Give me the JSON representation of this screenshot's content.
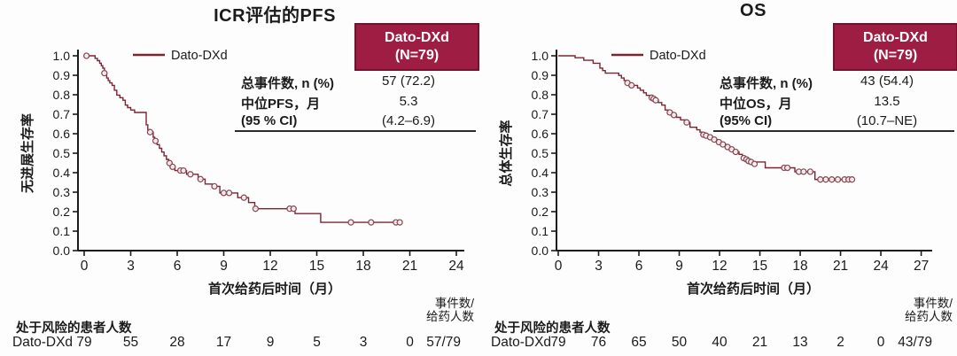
{
  "colors": {
    "curve": "#7d2433",
    "censor_stroke": "#8c4a56",
    "header_bg": "#9e1e43",
    "header_border": "#701331",
    "axis": "#1b1b1b",
    "text": "#1b1b1b"
  },
  "charts": [
    {
      "title": "ICR评估的PFS",
      "legend": "Dato-DXd",
      "ylabel": "无进展生存率",
      "xlabel": "首次给药后时间（月）",
      "header_line1": "Dato-DXd",
      "header_line2": "(N=79)",
      "stats": {
        "row1_label": "总事件数, n (%)",
        "row1_value": "57 (72.2)",
        "row2_label": "中位PFS，月",
        "row2_value": "5.3",
        "row3_label": "(95 % CI)",
        "row3_value": "(4.2–6.9)"
      },
      "risk_header": "处于风险的患者人数",
      "events_label_1": "事件数/",
      "events_label_2": "给药人数",
      "risk_group": "Dato-DXd",
      "risk_events": "57/79"
    },
    {
      "title": "OS",
      "legend": "Dato-DXd",
      "ylabel": "总体生存率",
      "xlabel": "首次给药后时间（月）",
      "header_line1": "Dato-DXd",
      "header_line2": "(N=79)",
      "stats": {
        "row1_label": "总事件数, n (%)",
        "row1_value": "43 (54.4)",
        "row2_label": "中位OS，月",
        "row2_value": "13.5",
        "row3_label": "(95% CI)",
        "row3_value": "(10.7–NE)"
      },
      "risk_header": "处于风险的患者人数",
      "events_label_1": "事件数/",
      "events_label_2": "给药人数",
      "risk_group": "Dato-DXd",
      "risk_events": "43/79"
    }
  ],
  "chart_data": [
    {
      "type": "line",
      "subtype": "kaplan-meier",
      "title": "ICR评估的PFS",
      "xlabel": "首次给药后时间（月）",
      "ylabel": "无进展生存率",
      "xlim": [
        0,
        24
      ],
      "ylim": [
        0.0,
        1.0
      ],
      "xticks": [
        0,
        3,
        6,
        9,
        12,
        15,
        18,
        21,
        24
      ],
      "yticks": [
        0.0,
        0.1,
        0.2,
        0.3,
        0.4,
        0.5,
        0.6,
        0.7,
        0.8,
        0.9,
        1.0
      ],
      "grid": false,
      "legend_position": "inside-top-left",
      "series": [
        {
          "name": "Dato-DXd",
          "n": 79,
          "events": "57/79",
          "median": 5.3,
          "ci95": "4.2–6.9",
          "steps": [
            [
              0,
              1.0
            ],
            [
              0.7,
              0.987
            ],
            [
              0.85,
              0.975
            ],
            [
              1.0,
              0.962
            ],
            [
              1.1,
              0.949
            ],
            [
              1.2,
              0.937
            ],
            [
              1.3,
              0.911
            ],
            [
              1.45,
              0.886
            ],
            [
              1.55,
              0.873
            ],
            [
              1.65,
              0.861
            ],
            [
              1.8,
              0.848
            ],
            [
              1.95,
              0.823
            ],
            [
              2.1,
              0.798
            ],
            [
              2.3,
              0.785
            ],
            [
              2.5,
              0.772
            ],
            [
              2.65,
              0.747
            ],
            [
              2.8,
              0.734
            ],
            [
              3.0,
              0.722
            ],
            [
              3.25,
              0.709
            ],
            [
              4.0,
              0.646
            ],
            [
              4.1,
              0.62
            ],
            [
              4.2,
              0.608
            ],
            [
              4.45,
              0.582
            ],
            [
              4.55,
              0.563
            ],
            [
              4.7,
              0.544
            ],
            [
              4.85,
              0.525
            ],
            [
              5.0,
              0.506
            ],
            [
              5.15,
              0.487
            ],
            [
              5.3,
              0.468
            ],
            [
              5.45,
              0.449
            ],
            [
              5.6,
              0.43
            ],
            [
              5.85,
              0.411
            ],
            [
              6.6,
              0.392
            ],
            [
              7.35,
              0.367
            ],
            [
              7.8,
              0.342
            ],
            [
              8.25,
              0.33
            ],
            [
              8.75,
              0.296
            ],
            [
              9.9,
              0.272
            ],
            [
              10.6,
              0.247
            ],
            [
              11.0,
              0.215
            ],
            [
              13.6,
              0.19
            ],
            [
              15.25,
              0.145
            ],
            [
              20.4,
              0.145
            ]
          ],
          "censors": [
            [
              0.15,
              1.0
            ],
            [
              1.3,
              0.911
            ],
            [
              4.25,
              0.608
            ],
            [
              4.6,
              0.563
            ],
            [
              5.5,
              0.449
            ],
            [
              5.7,
              0.43
            ],
            [
              6.2,
              0.411
            ],
            [
              6.4,
              0.411
            ],
            [
              6.85,
              0.392
            ],
            [
              7.5,
              0.367
            ],
            [
              8.4,
              0.33
            ],
            [
              9.0,
              0.296
            ],
            [
              9.35,
              0.296
            ],
            [
              10.3,
              0.272
            ],
            [
              11.05,
              0.215
            ],
            [
              13.25,
              0.215
            ],
            [
              13.5,
              0.215
            ],
            [
              17.2,
              0.145
            ],
            [
              18.5,
              0.145
            ],
            [
              20.1,
              0.145
            ],
            [
              20.35,
              0.145
            ]
          ]
        }
      ],
      "risk_table": {
        "label": "处于风险的患者人数",
        "group": "Dato-DXd",
        "times": [
          0,
          3,
          6,
          9,
          12,
          15,
          18,
          21
        ],
        "counts": [
          79,
          55,
          28,
          17,
          9,
          5,
          3,
          0
        ],
        "events_over_dosed": "57/79"
      }
    },
    {
      "type": "line",
      "subtype": "kaplan-meier",
      "title": "OS",
      "xlabel": "首次给药后时间（月）",
      "ylabel": "总体生存率",
      "xlim": [
        0,
        27
      ],
      "ylim": [
        0.0,
        1.0
      ],
      "xticks": [
        0,
        3,
        6,
        9,
        12,
        15,
        18,
        21,
        24,
        27
      ],
      "yticks": [
        0.0,
        0.1,
        0.2,
        0.3,
        0.4,
        0.5,
        0.6,
        0.7,
        0.8,
        0.9,
        1.0
      ],
      "grid": false,
      "legend_position": "inside-top-left",
      "series": [
        {
          "name": "Dato-DXd",
          "n": 79,
          "events": "43/79",
          "median": 13.5,
          "ci95": "10.7–NE",
          "steps": [
            [
              0,
              1.0
            ],
            [
              1.25,
              0.99
            ],
            [
              1.9,
              0.977
            ],
            [
              2.6,
              0.962
            ],
            [
              3.1,
              0.937
            ],
            [
              3.3,
              0.924
            ],
            [
              3.5,
              0.911
            ],
            [
              4.5,
              0.899
            ],
            [
              4.7,
              0.886
            ],
            [
              4.9,
              0.873
            ],
            [
              5.1,
              0.861
            ],
            [
              5.4,
              0.848
            ],
            [
              5.9,
              0.835
            ],
            [
              6.1,
              0.823
            ],
            [
              6.35,
              0.81
            ],
            [
              6.55,
              0.797
            ],
            [
              6.8,
              0.785
            ],
            [
              7.2,
              0.772
            ],
            [
              7.45,
              0.76
            ],
            [
              7.7,
              0.747
            ],
            [
              7.95,
              0.722
            ],
            [
              8.2,
              0.709
            ],
            [
              8.5,
              0.696
            ],
            [
              8.8,
              0.684
            ],
            [
              9.1,
              0.671
            ],
            [
              9.45,
              0.658
            ],
            [
              9.8,
              0.633
            ],
            [
              10.3,
              0.62
            ],
            [
              10.55,
              0.608
            ],
            [
              10.7,
              0.595
            ],
            [
              11.1,
              0.582
            ],
            [
              11.5,
              0.57
            ],
            [
              11.85,
              0.557
            ],
            [
              12.15,
              0.545
            ],
            [
              12.5,
              0.532
            ],
            [
              12.8,
              0.52
            ],
            [
              13.1,
              0.507
            ],
            [
              13.45,
              0.494
            ],
            [
              13.7,
              0.481
            ],
            [
              13.95,
              0.468
            ],
            [
              14.2,
              0.455
            ],
            [
              15.4,
              0.425
            ],
            [
              17.6,
              0.405
            ],
            [
              19.1,
              0.365
            ],
            [
              21.9,
              0.365
            ]
          ],
          "censors": [
            [
              5.15,
              0.861
            ],
            [
              5.45,
              0.848
            ],
            [
              6.95,
              0.785
            ],
            [
              7.1,
              0.779
            ],
            [
              7.25,
              0.772
            ],
            [
              8.3,
              0.709
            ],
            [
              8.6,
              0.696
            ],
            [
              9.55,
              0.658
            ],
            [
              10.8,
              0.595
            ],
            [
              11.0,
              0.59
            ],
            [
              11.3,
              0.582
            ],
            [
              11.6,
              0.57
            ],
            [
              11.95,
              0.557
            ],
            [
              12.25,
              0.545
            ],
            [
              12.6,
              0.532
            ],
            [
              12.9,
              0.52
            ],
            [
              13.2,
              0.507
            ],
            [
              13.8,
              0.475
            ],
            [
              14.0,
              0.468
            ],
            [
              14.15,
              0.46
            ],
            [
              14.35,
              0.455
            ],
            [
              14.6,
              0.445
            ],
            [
              16.8,
              0.425
            ],
            [
              17.05,
              0.425
            ],
            [
              17.9,
              0.405
            ],
            [
              18.25,
              0.405
            ],
            [
              18.75,
              0.405
            ],
            [
              19.5,
              0.365
            ],
            [
              19.9,
              0.365
            ],
            [
              20.35,
              0.365
            ],
            [
              20.8,
              0.365
            ],
            [
              21.3,
              0.365
            ],
            [
              21.6,
              0.365
            ],
            [
              21.85,
              0.365
            ]
          ]
        }
      ],
      "risk_table": {
        "label": "处于风险的患者人数",
        "group": "Dato-DXd",
        "times": [
          0,
          3,
          6,
          9,
          12,
          15,
          18,
          21,
          24
        ],
        "counts": [
          79,
          76,
          65,
          50,
          40,
          21,
          13,
          2,
          0
        ],
        "events_over_dosed": "43/79"
      }
    }
  ]
}
